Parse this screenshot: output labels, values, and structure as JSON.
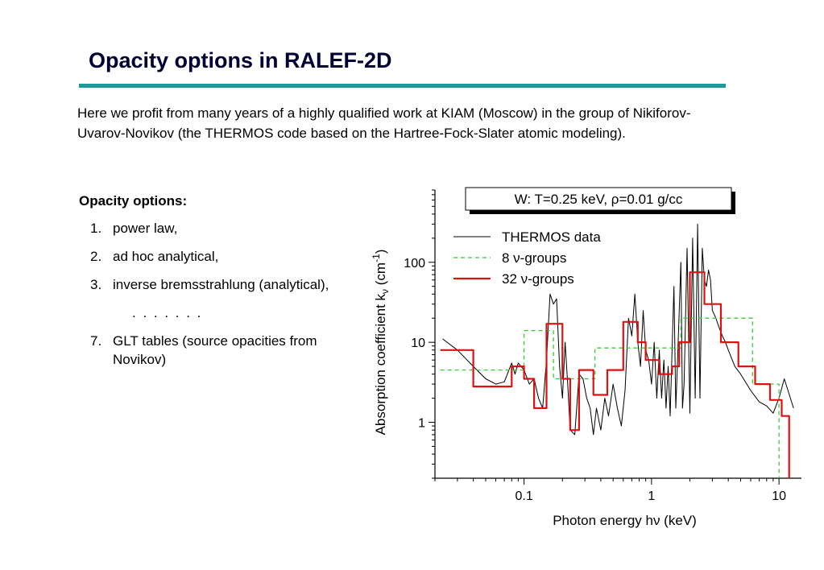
{
  "slide": {
    "title": "Opacity options in RALEF-2D",
    "intro": "Here we profit from many years of a highly qualified work at KIAM (Moscow) in the group of Nikiforov-Uvarov-Novikov (the THERMOS code based on the Hartree-Fock-Slater atomic modeling).",
    "accent_color": "#1a9a9a",
    "options_title": "Opacity options:",
    "options": [
      {
        "num": "1.",
        "text": "power law,"
      },
      {
        "num": "2.",
        "text": "ad hoc analytical,"
      },
      {
        "num": "3.",
        "text": "inverse bremsstrahlung (analytical),"
      },
      {
        "num": "7.",
        "text": "GLT tables (source opacities from Novikov)"
      }
    ],
    "ellipsis": ". . . . . . ."
  },
  "chart_data": {
    "type": "line",
    "title": "W: T=0.25 keV, ρ=0.01 g/cc",
    "xlabel": "Photon energy hν (keV)",
    "ylabel": "Absorption coefficient kν (cm-1)",
    "ylabel_parts": {
      "main": "Absorption coefficient k",
      "sub": "ν",
      "unit_open": " (cm",
      "sup": "-1",
      "unit_close": ")"
    },
    "xscale": "log",
    "yscale": "log",
    "xlim": [
      0.02,
      15
    ],
    "ylim": [
      0.2,
      800
    ],
    "xticks": [
      {
        "value": 0.1,
        "label": "0.1"
      },
      {
        "value": 1,
        "label": "1"
      },
      {
        "value": 10,
        "label": "10"
      }
    ],
    "yticks": [
      {
        "value": 1,
        "label": "1"
      },
      {
        "value": 10,
        "label": "10"
      },
      {
        "value": 100,
        "label": "100"
      }
    ],
    "legend_position": "top-right",
    "series": [
      {
        "name": "THERMOS data",
        "color": "#000000",
        "style": "solid",
        "points": [
          [
            0.023,
            11
          ],
          [
            0.03,
            8
          ],
          [
            0.04,
            5
          ],
          [
            0.05,
            3.5
          ],
          [
            0.06,
            3
          ],
          [
            0.07,
            3.2
          ],
          [
            0.08,
            5.5
          ],
          [
            0.085,
            4
          ],
          [
            0.09,
            5.5
          ],
          [
            0.1,
            4.5
          ],
          [
            0.11,
            3
          ],
          [
            0.12,
            3.5
          ],
          [
            0.13,
            2
          ],
          [
            0.14,
            1.5
          ],
          [
            0.15,
            6
          ],
          [
            0.16,
            40
          ],
          [
            0.17,
            30
          ],
          [
            0.18,
            35
          ],
          [
            0.19,
            5
          ],
          [
            0.2,
            2
          ],
          [
            0.21,
            10
          ],
          [
            0.22,
            3
          ],
          [
            0.23,
            0.8
          ],
          [
            0.25,
            0.7
          ],
          [
            0.27,
            4
          ],
          [
            0.29,
            3.5
          ],
          [
            0.31,
            2
          ],
          [
            0.33,
            1.5
          ],
          [
            0.35,
            0.7
          ],
          [
            0.37,
            1.5
          ],
          [
            0.4,
            0.8
          ],
          [
            0.43,
            2
          ],
          [
            0.46,
            1.2
          ],
          [
            0.5,
            3
          ],
          [
            0.54,
            1.5
          ],
          [
            0.58,
            0.9
          ],
          [
            0.62,
            2.5
          ],
          [
            0.66,
            20
          ],
          [
            0.7,
            12
          ],
          [
            0.74,
            40
          ],
          [
            0.78,
            10
          ],
          [
            0.82,
            5
          ],
          [
            0.86,
            25
          ],
          [
            0.9,
            8
          ],
          [
            0.95,
            6
          ],
          [
            1.0,
            3
          ],
          [
            1.05,
            10
          ],
          [
            1.1,
            2
          ],
          [
            1.15,
            8
          ],
          [
            1.2,
            2
          ],
          [
            1.25,
            6
          ],
          [
            1.3,
            1.5
          ],
          [
            1.35,
            5
          ],
          [
            1.4,
            1.2
          ],
          [
            1.5,
            50
          ],
          [
            1.55,
            1.5
          ],
          [
            1.6,
            6
          ],
          [
            1.7,
            100
          ],
          [
            1.75,
            1.5
          ],
          [
            1.8,
            3
          ],
          [
            1.9,
            150
          ],
          [
            2.0,
            1.3
          ],
          [
            2.1,
            200
          ],
          [
            2.2,
            2
          ],
          [
            2.3,
            300
          ],
          [
            2.4,
            2
          ],
          [
            2.5,
            150
          ],
          [
            2.6,
            60
          ],
          [
            2.7,
            50
          ],
          [
            2.8,
            80
          ],
          [
            2.9,
            60
          ],
          [
            3.0,
            25
          ],
          [
            3.2,
            20
          ],
          [
            3.4,
            15
          ],
          [
            3.6,
            12
          ],
          [
            3.8,
            10
          ],
          [
            4.0,
            8
          ],
          [
            4.5,
            5
          ],
          [
            5.0,
            4
          ],
          [
            6.0,
            2.5
          ],
          [
            7.0,
            1.8
          ],
          [
            8.0,
            1.6
          ],
          [
            9.0,
            1.3
          ],
          [
            10.0,
            2
          ],
          [
            11.0,
            3.5
          ],
          [
            13.0,
            1.5
          ]
        ]
      },
      {
        "name": "8 ν-groups",
        "color": "#33cc33",
        "style": "dashed",
        "steps": [
          [
            0.022,
            4.5
          ],
          [
            0.1,
            14
          ],
          [
            0.17,
            3.5
          ],
          [
            0.36,
            8.5
          ],
          [
            1.7,
            20
          ],
          [
            6.2,
            3
          ],
          [
            10,
            0.2
          ]
        ],
        "x_end": 10
      },
      {
        "name": "32 ν-groups",
        "color": "#dd1111",
        "style": "solid",
        "steps": [
          [
            0.022,
            8
          ],
          [
            0.04,
            2.8
          ],
          [
            0.08,
            5
          ],
          [
            0.1,
            3.5
          ],
          [
            0.12,
            1.5
          ],
          [
            0.15,
            17
          ],
          [
            0.2,
            3.5
          ],
          [
            0.23,
            0.8
          ],
          [
            0.27,
            4.5
          ],
          [
            0.35,
            2.2
          ],
          [
            0.45,
            4.5
          ],
          [
            0.6,
            18
          ],
          [
            0.78,
            10
          ],
          [
            0.9,
            6
          ],
          [
            1.15,
            4
          ],
          [
            1.45,
            5
          ],
          [
            1.65,
            10
          ],
          [
            2.0,
            75
          ],
          [
            2.6,
            30
          ],
          [
            3.5,
            10
          ],
          [
            4.8,
            5
          ],
          [
            6.5,
            3
          ],
          [
            8.5,
            1.9
          ],
          [
            10.5,
            1.2
          ],
          [
            12.0,
            0.2
          ]
        ],
        "x_end": 12
      }
    ]
  }
}
